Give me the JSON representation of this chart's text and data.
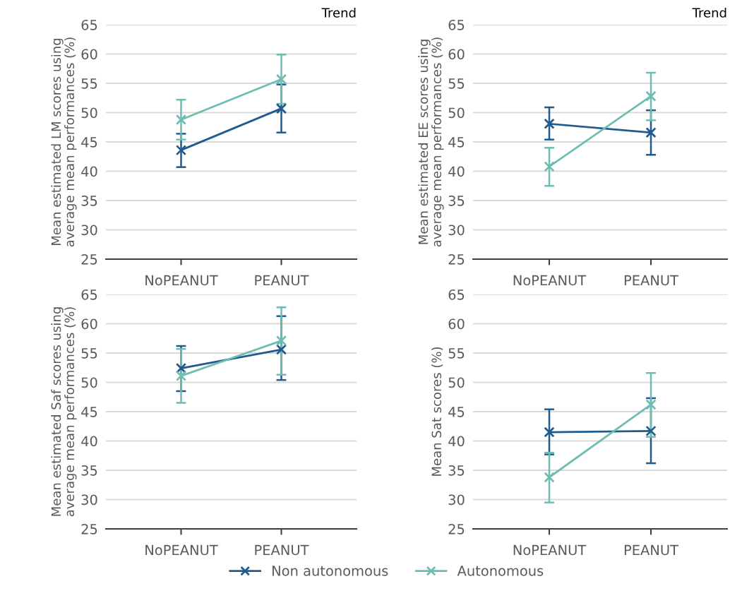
{
  "chart_data": [
    {
      "type": "line",
      "annotations": [
        "Trend"
      ],
      "ylabel": "Mean estimated LM scores using average mean performances (%)",
      "categories": [
        "NoPEANUT",
        "PEANUT"
      ],
      "ylim": [
        25,
        65
      ],
      "yticks": [
        25,
        30,
        35,
        40,
        45,
        50,
        55,
        60,
        65
      ],
      "grid": "y",
      "marker": "cross",
      "legend": "bottom",
      "series": [
        {
          "name": "Non autonomous",
          "color": "#1f5b8e",
          "values": [
            43.6,
            50.7
          ],
          "errors": [
            [
              40.7,
              46.4
            ],
            [
              46.6,
              54.8
            ]
          ]
        },
        {
          "name": "Autonomous",
          "color": "#6dbdb3",
          "values": [
            48.8,
            55.7
          ],
          "errors": [
            [
              45.4,
              52.2
            ],
            [
              51.5,
              59.9
            ]
          ]
        }
      ]
    },
    {
      "type": "line",
      "annotations": [
        "Trend"
      ],
      "ylabel": "Mean estimated EE scores using average mean performances (%)",
      "categories": [
        "NoPEANUT",
        "PEANUT"
      ],
      "ylim": [
        25,
        65
      ],
      "yticks": [
        25,
        30,
        35,
        40,
        45,
        50,
        55,
        60,
        65
      ],
      "grid": "y",
      "marker": "cross",
      "series": [
        {
          "color": "#1f5b8e",
          "values": [
            48.1,
            46.6
          ],
          "errors": [
            [
              45.4,
              50.9
            ],
            [
              42.8,
              50.4
            ]
          ]
        },
        {
          "color": "#6dbdb3",
          "values": [
            40.8,
            52.8
          ],
          "errors": [
            [
              37.5,
              44.0
            ],
            [
              48.7,
              56.8
            ]
          ]
        }
      ]
    },
    {
      "type": "line",
      "ylabel": "Mean estimated Saf scores using average mean performances (%)",
      "categories": [
        "NoPEANUT",
        "PEANUT"
      ],
      "ylim": [
        25,
        65
      ],
      "yticks": [
        25,
        30,
        35,
        40,
        45,
        50,
        55,
        60,
        65
      ],
      "grid": "y",
      "marker": "cross",
      "series": [
        {
          "color": "#1f5b8e",
          "values": [
            52.4,
            55.6
          ],
          "errors": [
            [
              48.5,
              56.2
            ],
            [
              50.4,
              61.3
            ]
          ]
        },
        {
          "color": "#6dbdb3",
          "values": [
            51.1,
            57.1
          ],
          "errors": [
            [
              46.5,
              55.7
            ],
            [
              51.3,
              62.8
            ]
          ]
        }
      ]
    },
    {
      "type": "line",
      "ylabel": "Mean Sat scores (%)",
      "categories": [
        "NoPEANUT",
        "PEANUT"
      ],
      "ylim": [
        25,
        65
      ],
      "yticks": [
        25,
        30,
        35,
        40,
        45,
        50,
        55,
        60,
        65
      ],
      "grid": "y",
      "marker": "cross",
      "series": [
        {
          "color": "#1f5b8e",
          "values": [
            41.5,
            41.7
          ],
          "errors": [
            [
              37.7,
              45.4
            ],
            [
              36.2,
              47.3
            ]
          ]
        },
        {
          "color": "#6dbdb3",
          "values": [
            33.8,
            46.2
          ],
          "errors": [
            [
              29.5,
              38.0
            ],
            [
              40.7,
              51.6
            ]
          ]
        }
      ]
    }
  ]
}
